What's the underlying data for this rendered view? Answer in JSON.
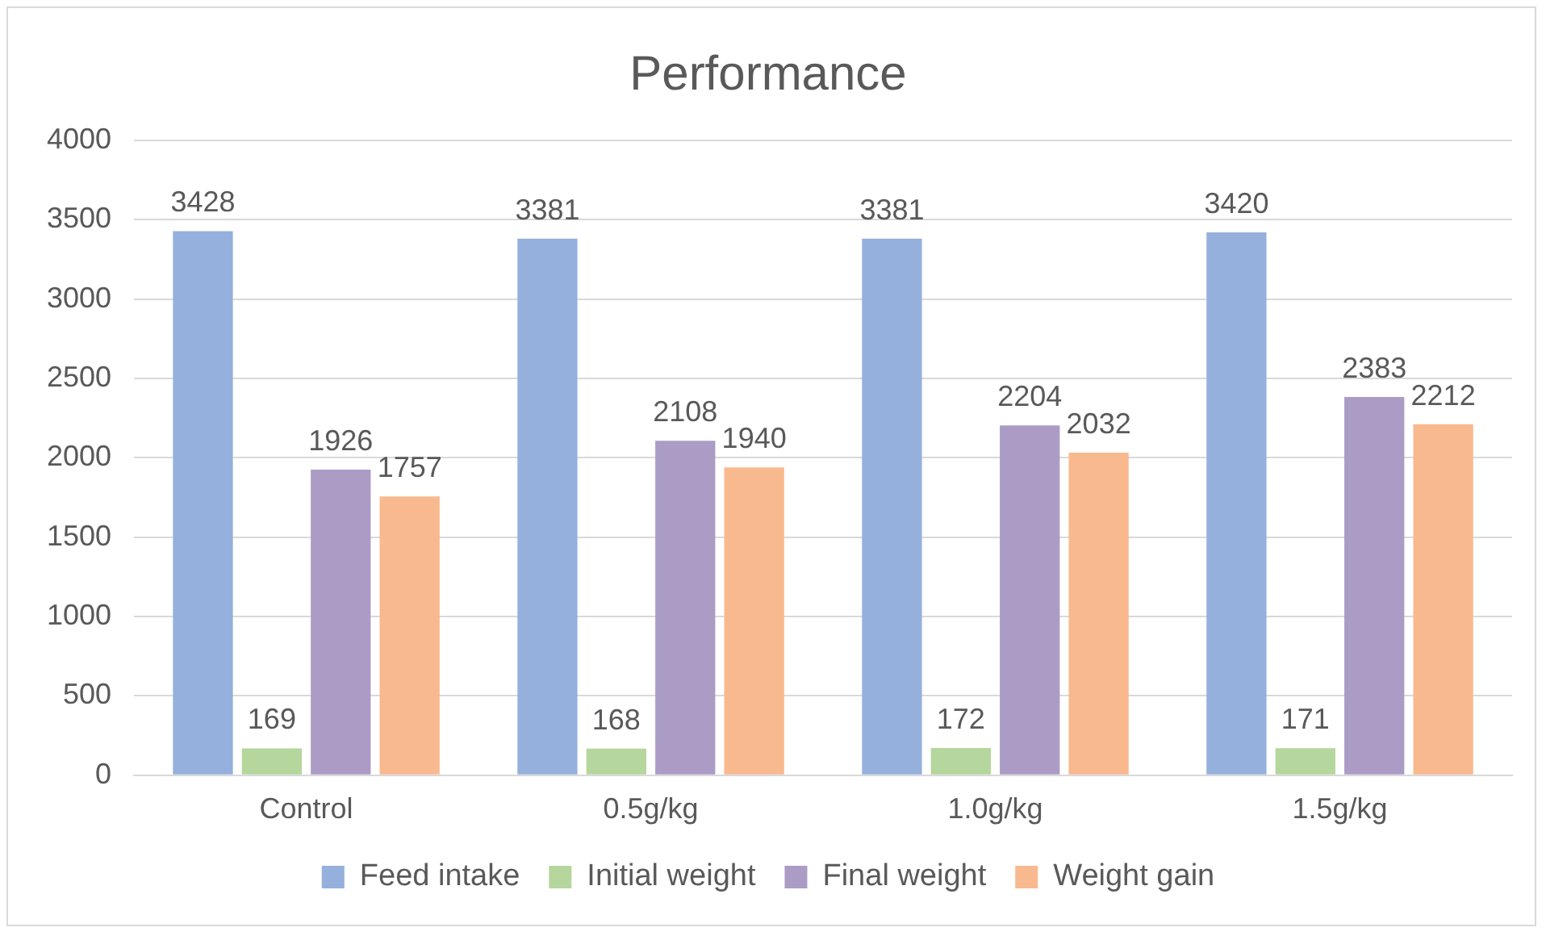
{
  "chart_data": {
    "type": "bar",
    "title": "Performance",
    "categories": [
      "Control",
      "0.5g/kg",
      "1.0g/kg",
      "1.5g/kg"
    ],
    "series": [
      {
        "name": "Feed intake",
        "color": "#95b0dc",
        "values": [
          3428,
          3381,
          3381,
          3420
        ]
      },
      {
        "name": "Initial weight",
        "color": "#b5d69c",
        "values": [
          169,
          168,
          172,
          171
        ]
      },
      {
        "name": "Final weight",
        "color": "#ab9cc6",
        "values": [
          1926,
          2108,
          2204,
          2383
        ]
      },
      {
        "name": "Weight gain",
        "color": "#f9b98f",
        "values": [
          1757,
          1940,
          2032,
          2212
        ]
      }
    ],
    "ylim": [
      0,
      4000
    ],
    "yticks": [
      0,
      500,
      1000,
      1500,
      2000,
      2500,
      3000,
      3500,
      4000
    ],
    "grid": "y",
    "legend": "bottom",
    "data_labels": true
  }
}
